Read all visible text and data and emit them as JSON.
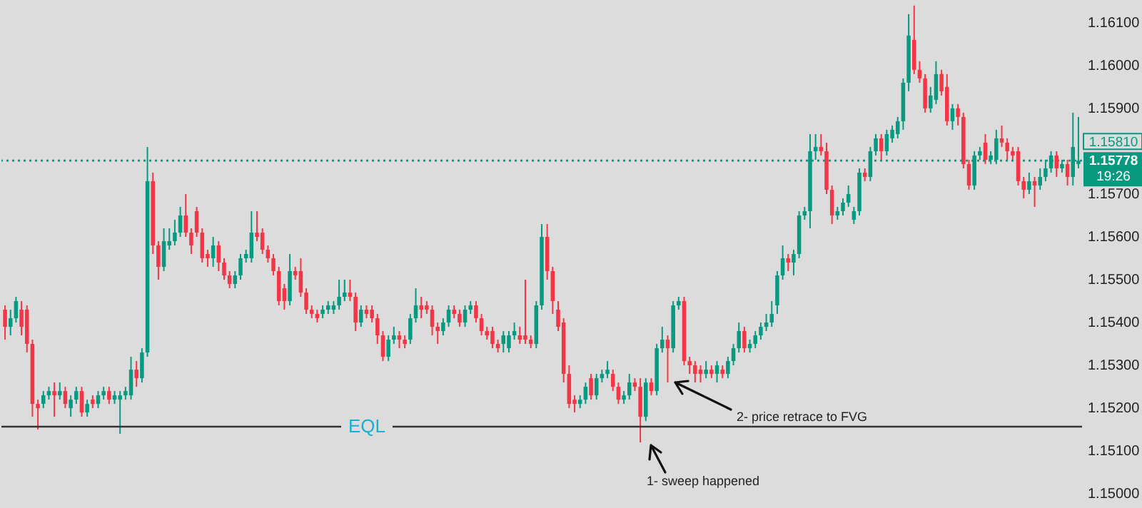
{
  "chart_data": {
    "type": "candlestick",
    "categories": [
      null,
      null,
      null,
      null,
      null,
      null,
      null,
      null,
      null,
      null,
      null,
      null,
      null,
      null,
      null,
      null,
      null,
      null,
      null,
      null,
      null,
      null,
      null,
      null,
      null,
      null,
      null,
      null,
      null,
      null,
      null,
      null,
      null,
      null,
      null,
      null,
      null,
      null,
      null,
      null,
      null,
      null,
      null,
      null,
      null,
      null,
      null,
      null,
      null,
      null,
      null,
      null,
      null,
      null,
      null,
      null,
      null,
      null,
      null,
      null,
      null,
      null,
      null,
      null,
      null,
      null,
      null,
      null,
      null,
      null,
      null,
      null,
      null,
      null,
      null,
      null,
      null,
      null,
      null,
      null,
      null,
      null,
      null,
      null,
      null,
      null,
      null,
      null,
      null,
      null,
      null,
      null,
      null,
      null,
      null,
      null,
      null,
      null,
      null,
      null,
      null,
      null,
      null,
      null,
      null,
      null,
      null,
      null,
      null,
      null,
      null,
      null,
      null,
      null,
      null,
      null,
      null,
      null,
      null,
      null,
      null,
      null,
      null,
      null,
      null,
      null,
      null,
      null,
      null,
      null,
      null,
      null,
      null,
      null,
      null,
      null,
      null,
      null,
      null,
      null,
      null,
      null,
      null,
      null,
      null,
      null,
      null,
      null,
      null,
      null,
      null,
      null,
      null,
      null,
      null,
      null,
      null,
      null,
      null,
      null,
      null,
      null,
      null,
      null,
      null,
      null,
      null,
      null,
      null,
      null,
      null,
      null,
      null,
      null,
      null,
      null,
      null,
      null,
      null,
      null,
      null,
      null,
      null,
      null,
      null,
      null,
      null,
      null,
      null,
      null,
      null,
      null,
      null,
      null,
      null,
      null,
      null
    ],
    "ohlc": [
      [
        1.1543,
        1.1544,
        1.1536,
        1.1539
      ],
      [
        1.1539,
        1.1543,
        1.1537,
        1.1541
      ],
      [
        1.1541,
        1.1546,
        1.154,
        1.1545
      ],
      [
        1.1543,
        1.1545,
        1.1537,
        1.1539
      ],
      [
        1.1543,
        1.1544,
        1.1533,
        1.1535
      ],
      [
        1.1535,
        1.1536,
        1.1518,
        1.1521
      ],
      [
        1.1521,
        1.1522,
        1.1515,
        1.152
      ],
      [
        1.1521,
        1.1524,
        1.152,
        1.1523
      ],
      [
        1.1523,
        1.1525,
        1.1522,
        1.1524
      ],
      [
        1.1524,
        1.1526,
        1.1518,
        1.1523
      ],
      [
        1.1523,
        1.1526,
        1.1522,
        1.1524
      ],
      [
        1.1524,
        1.1525,
        1.152,
        1.1521
      ],
      [
        1.152,
        1.1523,
        1.1518,
        1.1522
      ],
      [
        1.1522,
        1.1525,
        1.1521,
        1.1524
      ],
      [
        1.1524,
        1.1525,
        1.1518,
        1.1519
      ],
      [
        1.1519,
        1.1522,
        1.1518,
        1.1521
      ],
      [
        1.1522,
        1.1523,
        1.152,
        1.1521
      ],
      [
        1.1521,
        1.1524,
        1.152,
        1.1523
      ],
      [
        1.1523,
        1.1525,
        1.1522,
        1.1524
      ],
      [
        1.1524,
        1.1525,
        1.1521,
        1.1522
      ],
      [
        1.1522,
        1.1524,
        1.1521,
        1.1523
      ],
      [
        1.1522,
        1.1524,
        1.1514,
        1.1523
      ],
      [
        1.1523,
        1.1525,
        1.1522,
        1.1524
      ],
      [
        1.1523,
        1.1532,
        1.1522,
        1.1529
      ],
      [
        1.1529,
        1.1531,
        1.1525,
        1.1527
      ],
      [
        1.1527,
        1.1534,
        1.1526,
        1.1533
      ],
      [
        1.1533,
        1.1581,
        1.1532,
        1.1573
      ],
      [
        1.1573,
        1.1575,
        1.1556,
        1.1558
      ],
      [
        1.1558,
        1.1559,
        1.155,
        1.1553
      ],
      [
        1.1553,
        1.1562,
        1.1552,
        1.1559
      ],
      [
        1.1558,
        1.1562,
        1.1557,
        1.1559
      ],
      [
        1.1559,
        1.1564,
        1.1558,
        1.1561
      ],
      [
        1.1561,
        1.1567,
        1.156,
        1.1565
      ],
      [
        1.1565,
        1.157,
        1.156,
        1.1561
      ],
      [
        1.1561,
        1.1562,
        1.1556,
        1.1558
      ],
      [
        1.1566,
        1.1567,
        1.156,
        1.1561
      ],
      [
        1.1561,
        1.1562,
        1.1554,
        1.1555
      ],
      [
        1.1556,
        1.1557,
        1.1553,
        1.1555
      ],
      [
        1.1555,
        1.156,
        1.1553,
        1.1558
      ],
      [
        1.1558,
        1.1559,
        1.1552,
        1.1554
      ],
      [
        1.1554,
        1.1555,
        1.155,
        1.1551
      ],
      [
        1.1551,
        1.1552,
        1.1548,
        1.1549
      ],
      [
        1.1549,
        1.1552,
        1.1548,
        1.1551
      ],
      [
        1.1551,
        1.1556,
        1.155,
        1.1555
      ],
      [
        1.1555,
        1.1557,
        1.1554,
        1.1556
      ],
      [
        1.1555,
        1.1566,
        1.1554,
        1.1561
      ],
      [
        1.1561,
        1.1566,
        1.1559,
        1.156
      ],
      [
        1.1561,
        1.1562,
        1.1556,
        1.1557
      ],
      [
        1.1557,
        1.1558,
        1.1554,
        1.1555
      ],
      [
        1.1555,
        1.1556,
        1.1551,
        1.1552
      ],
      [
        1.1552,
        1.1553,
        1.1544,
        1.1545
      ],
      [
        1.1548,
        1.1549,
        1.1543,
        1.1545
      ],
      [
        1.1545,
        1.1556,
        1.1544,
        1.1552
      ],
      [
        1.1552,
        1.1553,
        1.155,
        1.1551
      ],
      [
        1.1552,
        1.1555,
        1.1546,
        1.1547
      ],
      [
        1.1547,
        1.1548,
        1.1542,
        1.1543
      ],
      [
        1.1543,
        1.1544,
        1.1541,
        1.1542
      ],
      [
        1.1542,
        1.1543,
        1.154,
        1.1541
      ],
      [
        1.1542,
        1.1544,
        1.1541,
        1.1543
      ],
      [
        1.1543,
        1.1545,
        1.1542,
        1.1544
      ],
      [
        1.1543,
        1.1545,
        1.1542,
        1.1544
      ],
      [
        1.1544,
        1.155,
        1.1543,
        1.1546
      ],
      [
        1.1546,
        1.155,
        1.1545,
        1.1547
      ],
      [
        1.1547,
        1.155,
        1.1545,
        1.1546
      ],
      [
        1.1546,
        1.1547,
        1.1538,
        1.154
      ],
      [
        1.154,
        1.1544,
        1.1539,
        1.1543
      ],
      [
        1.1543,
        1.1544,
        1.1541,
        1.1542
      ],
      [
        1.1543,
        1.1544,
        1.154,
        1.1541
      ],
      [
        1.1541,
        1.1542,
        1.1535,
        1.1537
      ],
      [
        1.1537,
        1.1538,
        1.1531,
        1.1532
      ],
      [
        1.1532,
        1.1537,
        1.1531,
        1.1536
      ],
      [
        1.1536,
        1.1539,
        1.1535,
        1.1537
      ],
      [
        1.1537,
        1.1538,
        1.1534,
        1.1536
      ],
      [
        1.1536,
        1.1537,
        1.1534,
        1.1535
      ],
      [
        1.1536,
        1.1542,
        1.1535,
        1.1541
      ],
      [
        1.1541,
        1.1548,
        1.154,
        1.1544
      ],
      [
        1.1544,
        1.1546,
        1.1541,
        1.1543
      ],
      [
        1.1544,
        1.1545,
        1.1542,
        1.1543
      ],
      [
        1.1543,
        1.1544,
        1.1537,
        1.1539
      ],
      [
        1.1539,
        1.154,
        1.1535,
        1.1538
      ],
      [
        1.1538,
        1.1541,
        1.1537,
        1.154
      ],
      [
        1.154,
        1.1544,
        1.1539,
        1.1543
      ],
      [
        1.1543,
        1.1544,
        1.1541,
        1.1542
      ],
      [
        1.1542,
        1.1543,
        1.1539,
        1.154
      ],
      [
        1.154,
        1.1544,
        1.1539,
        1.1543
      ],
      [
        1.1543,
        1.1545,
        1.1542,
        1.1544
      ],
      [
        1.1544,
        1.1545,
        1.154,
        1.1541
      ],
      [
        1.1541,
        1.1542,
        1.1537,
        1.1538
      ],
      [
        1.1538,
        1.1539,
        1.1536,
        1.1537
      ],
      [
        1.1538,
        1.1539,
        1.1534,
        1.1535
      ],
      [
        1.1535,
        1.1536,
        1.1533,
        1.1534
      ],
      [
        1.1535,
        1.1538,
        1.1533,
        1.1537
      ],
      [
        1.1534,
        1.1538,
        1.1533,
        1.1537
      ],
      [
        1.1537,
        1.154,
        1.1536,
        1.1538
      ],
      [
        1.1537,
        1.1539,
        1.1535,
        1.1536
      ],
      [
        1.1537,
        1.155,
        1.1535,
        1.1536
      ],
      [
        1.1536,
        1.1537,
        1.1534,
        1.1535
      ],
      [
        1.1535,
        1.1545,
        1.1534,
        1.1544
      ],
      [
        1.1544,
        1.1563,
        1.1543,
        1.156
      ],
      [
        1.156,
        1.1563,
        1.155,
        1.1552
      ],
      [
        1.1552,
        1.1553,
        1.1542,
        1.1545
      ],
      [
        1.1543,
        1.1545,
        1.1538,
        1.1539
      ],
      [
        1.154,
        1.1541,
        1.1526,
        1.1528
      ],
      [
        1.1528,
        1.153,
        1.152,
        1.1521
      ],
      [
        1.1522,
        1.1523,
        1.1519,
        1.1521
      ],
      [
        1.1521,
        1.1523,
        1.152,
        1.1522
      ],
      [
        1.1522,
        1.1526,
        1.1521,
        1.1525
      ],
      [
        1.1527,
        1.1528,
        1.1522,
        1.1523
      ],
      [
        1.1523,
        1.1528,
        1.1522,
        1.1527
      ],
      [
        1.1527,
        1.1529,
        1.1526,
        1.1528
      ],
      [
        1.1528,
        1.1531,
        1.1527,
        1.1529
      ],
      [
        1.1528,
        1.1529,
        1.1524,
        1.1525
      ],
      [
        1.1525,
        1.1526,
        1.1521,
        1.1522
      ],
      [
        1.1522,
        1.1524,
        1.1521,
        1.1523
      ],
      [
        1.1523,
        1.1528,
        1.1522,
        1.1526
      ],
      [
        1.1526,
        1.1527,
        1.1524,
        1.1525
      ],
      [
        1.1525,
        1.1527,
        1.1512,
        1.1518
      ],
      [
        1.1518,
        1.1527,
        1.1517,
        1.1526
      ],
      [
        1.1526,
        1.1527,
        1.1523,
        1.1524
      ],
      [
        1.1524,
        1.1535,
        1.1523,
        1.1534
      ],
      [
        1.1534,
        1.1539,
        1.1533,
        1.1536
      ],
      [
        1.1536,
        1.1537,
        1.1526,
        1.1534
      ],
      [
        1.1534,
        1.1545,
        1.1533,
        1.1544
      ],
      [
        1.1544,
        1.1546,
        1.1543,
        1.1545
      ],
      [
        1.1545,
        1.1546,
        1.153,
        1.1531
      ],
      [
        1.1531,
        1.1532,
        1.1528,
        1.153
      ],
      [
        1.153,
        1.1531,
        1.1526,
        1.1528
      ],
      [
        1.1529,
        1.153,
        1.1526,
        1.1528
      ],
      [
        1.1528,
        1.1531,
        1.1527,
        1.1529
      ],
      [
        1.1529,
        1.153,
        1.1527,
        1.1528
      ],
      [
        1.1528,
        1.1531,
        1.1526,
        1.153
      ],
      [
        1.1529,
        1.153,
        1.1527,
        1.1528
      ],
      [
        1.1528,
        1.1532,
        1.1527,
        1.1531
      ],
      [
        1.1531,
        1.1535,
        1.153,
        1.1534
      ],
      [
        1.1534,
        1.154,
        1.1533,
        1.1538
      ],
      [
        1.1538,
        1.1539,
        1.1533,
        1.1534
      ],
      [
        1.1534,
        1.1536,
        1.1533,
        1.1535
      ],
      [
        1.1535,
        1.1538,
        1.1534,
        1.1537
      ],
      [
        1.1537,
        1.154,
        1.1536,
        1.1539
      ],
      [
        1.1539,
        1.1542,
        1.1538,
        1.154
      ],
      [
        1.154,
        1.1545,
        1.1539,
        1.1542
      ],
      [
        1.1544,
        1.1552,
        1.1542,
        1.1551
      ],
      [
        1.1551,
        1.1558,
        1.155,
        1.1555
      ],
      [
        1.1555,
        1.1556,
        1.1552,
        1.1554
      ],
      [
        1.1554,
        1.1557,
        1.1551,
        1.1556
      ],
      [
        1.1556,
        1.1566,
        1.1555,
        1.1565
      ],
      [
        1.1565,
        1.1567,
        1.1564,
        1.1566
      ],
      [
        1.1566,
        1.1584,
        1.1562,
        1.158
      ],
      [
        1.158,
        1.1584,
        1.1578,
        1.1581
      ],
      [
        1.1581,
        1.1584,
        1.1579,
        1.158
      ],
      [
        1.158,
        1.1582,
        1.157,
        1.1571
      ],
      [
        1.1571,
        1.1572,
        1.1563,
        1.1565
      ],
      [
        1.1565,
        1.1567,
        1.1564,
        1.1566
      ],
      [
        1.1566,
        1.1569,
        1.1565,
        1.1568
      ],
      [
        1.1568,
        1.1572,
        1.1567,
        1.157
      ],
      [
        1.1564,
        1.1567,
        1.1563,
        1.1566
      ],
      [
        1.1566,
        1.1576,
        1.1565,
        1.1575
      ],
      [
        1.1575,
        1.1576,
        1.1573,
        1.1574
      ],
      [
        1.1574,
        1.1581,
        1.1573,
        1.158
      ],
      [
        1.158,
        1.1584,
        1.1579,
        1.1583
      ],
      [
        1.1583,
        1.1584,
        1.1578,
        1.158
      ],
      [
        1.158,
        1.1585,
        1.1579,
        1.1584
      ],
      [
        1.1583,
        1.1586,
        1.1582,
        1.1585
      ],
      [
        1.1584,
        1.1588,
        1.1583,
        1.1587
      ],
      [
        1.1587,
        1.1597,
        1.1585,
        1.1596
      ],
      [
        1.1596,
        1.1612,
        1.1594,
        1.1607
      ],
      [
        1.1606,
        1.1614,
        1.1598,
        1.1599
      ],
      [
        1.1599,
        1.1601,
        1.1596,
        1.1597
      ],
      [
        1.1597,
        1.1598,
        1.1589,
        1.159
      ],
      [
        1.159,
        1.1595,
        1.1589,
        1.1593
      ],
      [
        1.1592,
        1.1601,
        1.1591,
        1.1598
      ],
      [
        1.1598,
        1.1599,
        1.1593,
        1.1594
      ],
      [
        1.1595,
        1.1598,
        1.1586,
        1.1587
      ],
      [
        1.1587,
        1.1591,
        1.1585,
        1.159
      ],
      [
        1.159,
        1.1591,
        1.1586,
        1.1588
      ],
      [
        1.1588,
        1.1589,
        1.1576,
        1.1577
      ],
      [
        1.1577,
        1.1578,
        1.1571,
        1.1572
      ],
      [
        1.1572,
        1.158,
        1.1571,
        1.1579
      ],
      [
        1.1579,
        1.1581,
        1.1578,
        1.158
      ],
      [
        1.1582,
        1.1584,
        1.1577,
        1.1578
      ],
      [
        1.1578,
        1.158,
        1.1577,
        1.1579
      ],
      [
        1.1578,
        1.1585,
        1.1577,
        1.1583
      ],
      [
        1.1583,
        1.1586,
        1.1581,
        1.1582
      ],
      [
        1.1582,
        1.1583,
        1.1578,
        1.158
      ],
      [
        1.158,
        1.1581,
        1.1578,
        1.1579
      ],
      [
        1.158,
        1.1581,
        1.1572,
        1.1573
      ],
      [
        1.1573,
        1.1574,
        1.1569,
        1.1571
      ],
      [
        1.1571,
        1.1575,
        1.157,
        1.1573
      ],
      [
        1.1573,
        1.1574,
        1.1567,
        1.1572
      ],
      [
        1.1572,
        1.1576,
        1.1571,
        1.1574
      ],
      [
        1.1574,
        1.1578,
        1.1573,
        1.1576
      ],
      [
        1.1576,
        1.158,
        1.1575,
        1.1579
      ],
      [
        1.1579,
        1.158,
        1.1574,
        1.1576
      ],
      [
        1.1576,
        1.1578,
        1.1575,
        1.1577
      ],
      [
        1.1577,
        1.1578,
        1.1572,
        1.1574
      ],
      [
        1.1574,
        1.1589,
        1.1572,
        1.1581
      ],
      [
        1.1577,
        1.1588,
        1.1576,
        1.15778
      ]
    ],
    "colors": [
      "#f23645",
      "#089981",
      "#089981",
      "#f23645",
      "#f23645",
      "#f23645",
      "#f23645",
      "#089981",
      "#089981",
      "#f23645",
      "#089981",
      "#f23645",
      "#089981",
      "#089981",
      "#f23645",
      "#089981",
      "#f23645",
      "#089981",
      "#089981",
      "#f23645",
      "#089981",
      "#089981",
      "#089981",
      "#089981",
      "#f23645",
      "#089981",
      "#089981",
      "#f23645",
      "#f23645",
      "#089981",
      "#089981",
      "#089981",
      "#089981",
      "#f23645",
      "#f23645",
      "#f23645",
      "#f23645",
      "#f23645",
      "#089981",
      "#f23645",
      "#f23645",
      "#f23645",
      "#089981",
      "#089981",
      "#089981",
      "#089981",
      "#f23645",
      "#f23645",
      "#f23645",
      "#f23645",
      "#f23645",
      "#f23645",
      "#089981",
      "#f23645",
      "#f23645",
      "#f23645",
      "#f23645",
      "#f23645",
      "#089981",
      "#089981",
      "#089981",
      "#089981",
      "#089981",
      "#f23645",
      "#f23645",
      "#089981",
      "#f23645",
      "#f23645",
      "#f23645",
      "#f23645",
      "#089981",
      "#089981",
      "#f23645",
      "#f23645",
      "#089981",
      "#089981",
      "#f23645",
      "#f23645",
      "#f23645",
      "#f23645",
      "#089981",
      "#089981",
      "#f23645",
      "#f23645",
      "#089981",
      "#089981",
      "#f23645",
      "#f23645",
      "#f23645",
      "#f23645",
      "#f23645",
      "#089981",
      "#089981",
      "#089981",
      "#f23645",
      "#f23645",
      "#f23645",
      "#089981",
      "#089981",
      "#f23645",
      "#f23645",
      "#f23645",
      "#f23645",
      "#f23645",
      "#f23645",
      "#089981",
      "#089981",
      "#f23645",
      "#089981",
      "#089981",
      "#089981",
      "#f23645",
      "#f23645",
      "#089981",
      "#089981",
      "#f23645",
      "#f23645",
      "#089981",
      "#f23645",
      "#089981",
      "#089981",
      "#f23645",
      "#089981",
      "#089981",
      "#f23645",
      "#f23645",
      "#f23645",
      "#f23645",
      "#089981",
      "#f23645",
      "#089981",
      "#f23645",
      "#089981",
      "#089981",
      "#089981",
      "#f23645",
      "#089981",
      "#089981",
      "#089981",
      "#089981",
      "#089981",
      "#089981",
      "#089981",
      "#f23645",
      "#089981",
      "#089981",
      "#089981",
      "#089981",
      "#089981",
      "#f23645",
      "#f23645",
      "#f23645",
      "#089981",
      "#089981",
      "#089981",
      "#089981",
      "#089981",
      "#f23645",
      "#089981",
      "#089981",
      "#f23645",
      "#089981",
      "#089981",
      "#089981",
      "#089981",
      "#089981",
      "#f23645",
      "#f23645",
      "#f23645",
      "#089981",
      "#089981",
      "#f23645",
      "#f23645",
      "#089981",
      "#f23645",
      "#f23645",
      "#f23645",
      "#089981",
      "#089981",
      "#f23645",
      "#089981",
      "#089981",
      "#f23645",
      "#f23645",
      "#f23645",
      "#f23645",
      "#f23645",
      "#089981",
      "#f23645",
      "#089981",
      "#089981",
      "#089981",
      "#f23645",
      "#089981",
      "#f23645",
      "#089981",
      "#089981"
    ],
    "ylim": [
      1.14967,
      1.16153
    ],
    "yticks": [
      {
        "value": 1.15,
        "label": "1.15000"
      },
      {
        "value": 1.151,
        "label": "1.15100"
      },
      {
        "value": 1.152,
        "label": "1.15200"
      },
      {
        "value": 1.153,
        "label": "1.15300"
      },
      {
        "value": 1.154,
        "label": "1.15400"
      },
      {
        "value": 1.155,
        "label": "1.15500"
      },
      {
        "value": 1.156,
        "label": "1.15600"
      },
      {
        "value": 1.157,
        "label": "1.15700"
      },
      {
        "value": 1.159,
        "label": "1.15900"
      },
      {
        "value": 1.16,
        "label": "1.16000"
      },
      {
        "value": 1.161,
        "label": "1.16100"
      }
    ],
    "ref_lines": [
      {
        "axis": "y",
        "value": 1.15778,
        "label": "1.15778",
        "color": "#089981",
        "line_style": "dotted"
      },
      {
        "axis": "y",
        "value": 1.15157,
        "label": "EQL",
        "color": "#333333",
        "line_style": "solid"
      }
    ],
    "annotations": [
      "1.15810",
      "19:26",
      "1- sweep happened",
      "2- price retrace to FVG"
    ]
  }
}
